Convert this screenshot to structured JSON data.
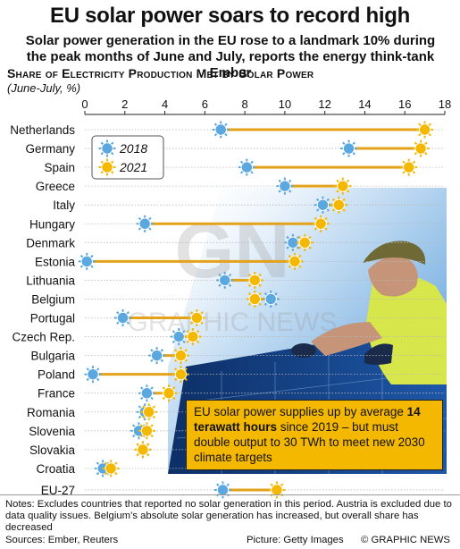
{
  "header": {
    "title": "EU solar power soars to record high",
    "subtitle": "Solar power generation in the EU rose to a landmark 10% during the peak months of June and July, reports the energy think-tank Ember"
  },
  "chart_data": {
    "type": "dumbbell",
    "title": "Share of Electricity Production Met by Solar Power",
    "subtitle": "(June-July, %)",
    "xlim": [
      0,
      18
    ],
    "xticks": [
      0,
      2,
      4,
      6,
      8,
      10,
      12,
      14,
      16,
      18
    ],
    "legend": {
      "placement": "top-left",
      "entries": [
        "2018",
        "2021"
      ]
    },
    "series": [
      {
        "name": "2018",
        "color": "#5ba7e0"
      },
      {
        "name": "2021",
        "color": "#f5b800"
      }
    ],
    "categories": [
      "Netherlands",
      "Germany",
      "Spain",
      "Greece",
      "Italy",
      "Hungary",
      "Denmark",
      "Estonia",
      "Lithuania",
      "Belgium",
      "Portugal",
      "Czech Rep.",
      "Bulgaria",
      "Poland",
      "France",
      "Romania",
      "Slovenia",
      "Slovakia",
      "Croatia",
      "EU-27"
    ],
    "values_2018": [
      6.8,
      13.2,
      8.1,
      10.0,
      11.9,
      3.0,
      10.4,
      0.1,
      7.0,
      9.3,
      1.9,
      4.7,
      3.6,
      0.4,
      3.1,
      3.0,
      2.7,
      2.9,
      0.9,
      6.9
    ],
    "values_2021": [
      17.0,
      16.8,
      16.2,
      12.9,
      12.7,
      11.8,
      11.0,
      10.5,
      8.5,
      8.5,
      5.6,
      5.4,
      4.8,
      4.8,
      4.2,
      3.2,
      3.1,
      2.9,
      1.3,
      9.6
    ]
  },
  "callout": {
    "text_a": "EU solar power supplies up by average ",
    "text_bold": "14 terawatt hours",
    "text_b": " since 2019 – but must double output to 30 TWh to meet new 2030 climate targets"
  },
  "footer": {
    "notes": "Notes: Excludes countries that reported no solar generation in this period. Austria is excluded due to data quality issues. Belgium’s absolute solar generation has increased, but overall share has decreased",
    "sources": "Sources: Ember, Reuters",
    "picture": "Picture: Getty Images",
    "brand": "© GRAPHIC NEWS"
  },
  "watermark": {
    "letters": "GN",
    "text": "GRAPHIC NEWS"
  },
  "colors": {
    "dot_2018": "#5ba7e0",
    "dot_2021": "#f5b800",
    "connector": "#e3a21a",
    "callout": "#f5b800"
  }
}
